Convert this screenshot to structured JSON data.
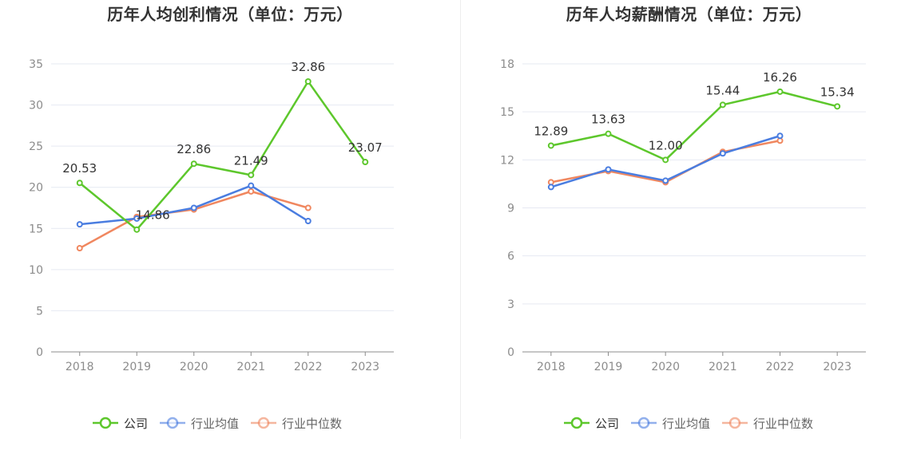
{
  "chart_data": [
    {
      "type": "line",
      "title": "历年人均创利情况（单位：万元）",
      "categories": [
        "2018",
        "2019",
        "2020",
        "2021",
        "2022",
        "2023"
      ],
      "ylim": [
        0,
        35
      ],
      "yticks": [
        "0",
        "5",
        "10",
        "15",
        "20",
        "25",
        "30",
        "35"
      ],
      "grid": true,
      "legend_position": "bottom",
      "series": [
        {
          "name": "公司",
          "color": "#5dc72c",
          "values": [
            20.53,
            14.86,
            22.86,
            21.49,
            32.86,
            23.07
          ],
          "labels": [
            "20.53",
            "14.86",
            "22.86",
            "21.49",
            "32.86",
            "23.07"
          ]
        },
        {
          "name": "行业均值",
          "color": "#4a7de0",
          "values": [
            15.5,
            16.2,
            17.5,
            20.2,
            15.9,
            null
          ]
        },
        {
          "name": "行业中位数",
          "color": "#f0875f",
          "values": [
            12.6,
            16.4,
            17.3,
            19.5,
            17.5,
            null
          ]
        }
      ]
    },
    {
      "type": "line",
      "title": "历年人均薪酬情况（单位：万元）",
      "categories": [
        "2018",
        "2019",
        "2020",
        "2021",
        "2022",
        "2023"
      ],
      "ylim": [
        0,
        18
      ],
      "yticks": [
        "0",
        "3",
        "6",
        "9",
        "12",
        "15",
        "18"
      ],
      "grid": true,
      "legend_position": "bottom",
      "series": [
        {
          "name": "公司",
          "color": "#5dc72c",
          "values": [
            12.89,
            13.63,
            12.0,
            15.44,
            16.26,
            15.34
          ],
          "labels": [
            "12.89",
            "13.63",
            "12.00",
            "15.44",
            "16.26",
            "15.34"
          ]
        },
        {
          "name": "行业均值",
          "color": "#4a7de0",
          "values": [
            10.3,
            11.4,
            10.7,
            12.4,
            13.5,
            null
          ]
        },
        {
          "name": "行业中位数",
          "color": "#f0875f",
          "values": [
            10.6,
            11.3,
            10.6,
            12.5,
            13.2,
            null
          ]
        }
      ]
    }
  ]
}
